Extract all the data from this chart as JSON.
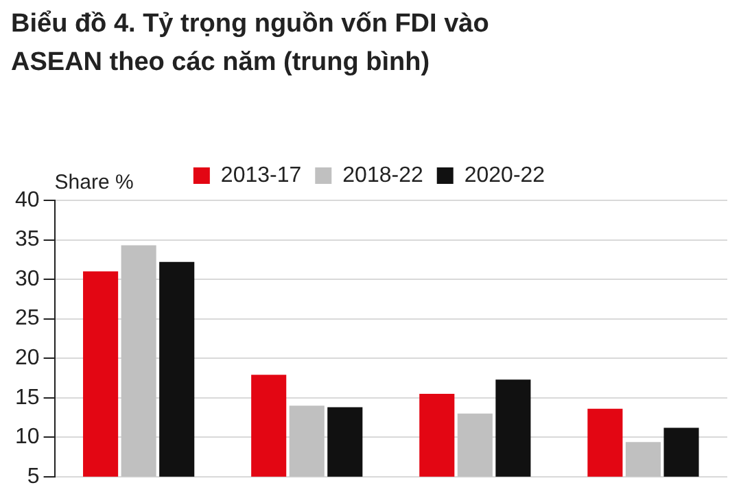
{
  "chart_data": {
    "type": "bar",
    "title": "Biểu đồ 4. Tỷ trọng nguồn vốn FDI vào ASEAN theo các năm (trung bình)",
    "ylabel": "Share %",
    "categories": [
      null,
      null,
      null,
      null
    ],
    "series": [
      {
        "name": "2013-17",
        "color": "#e30613",
        "values": [
          31.0,
          17.9,
          15.5,
          13.6
        ]
      },
      {
        "name": "2018-22",
        "color": "#c0c0c0",
        "values": [
          34.3,
          14.0,
          13.0,
          9.4
        ]
      },
      {
        "name": "2020-22",
        "color": "#111111",
        "values": [
          32.2,
          13.8,
          17.3,
          11.2
        ]
      }
    ],
    "ylim": [
      5,
      40
    ],
    "yticks": [
      5,
      10,
      15,
      20,
      25,
      30,
      35,
      40
    ],
    "grid": "y",
    "legend": "top"
  }
}
